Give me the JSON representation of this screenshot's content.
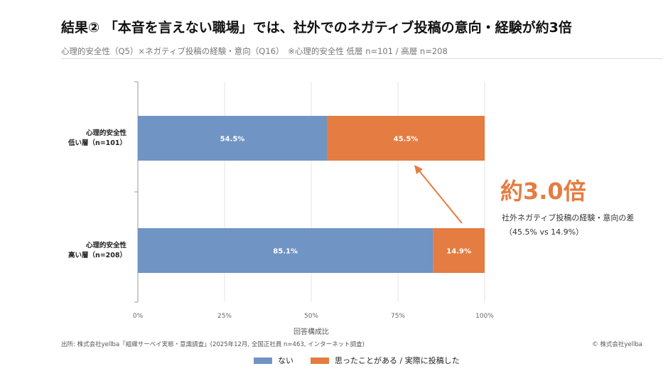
{
  "title": "結果② 「本音を言えない職場」では、社外でのネガティブ投稿の意向・経験が約3倍",
  "subtitle": "心理的安全性（Q5）×ネガティブ投稿の経験・意向（Q16）　※心理的安全性 低層 n=101 / 高層 n=208",
  "source": "出所: 株式会社yellba「組織サーベイ実態・意識調査」(2025年12月, 全国正社員 n=463, インターネット調査)",
  "copyright": "© 株式会社yellba",
  "callout": {
    "big": "約3.0倍",
    "line1": "社外ネガティブ投稿の経験・意向の差",
    "line2": "（45.5% vs 14.9%）",
    "color": "#e57c41"
  },
  "chart_data": {
    "type": "bar",
    "orientation": "horizontal",
    "stacked": true,
    "categories": [
      [
        "心理的安全性",
        "低い層（n=101）"
      ],
      [
        "心理的安全性",
        "高い層（n=208）"
      ]
    ],
    "series": [
      {
        "name": "ない",
        "values": [
          54.5,
          85.1
        ],
        "labels": [
          "54.5%",
          "85.1%"
        ],
        "color": "#7094c4"
      },
      {
        "name": "思ったことがある / 実際に投稿した",
        "values": [
          45.5,
          14.9
        ],
        "labels": [
          "45.5%",
          "14.9%"
        ],
        "color": "#e57c41"
      }
    ],
    "xlabel": "回答構成比",
    "xlim": [
      0,
      100
    ],
    "xticks": [
      "0%",
      "25%",
      "50%",
      "75%",
      "100%"
    ],
    "grid": true,
    "legend": "bottom"
  }
}
